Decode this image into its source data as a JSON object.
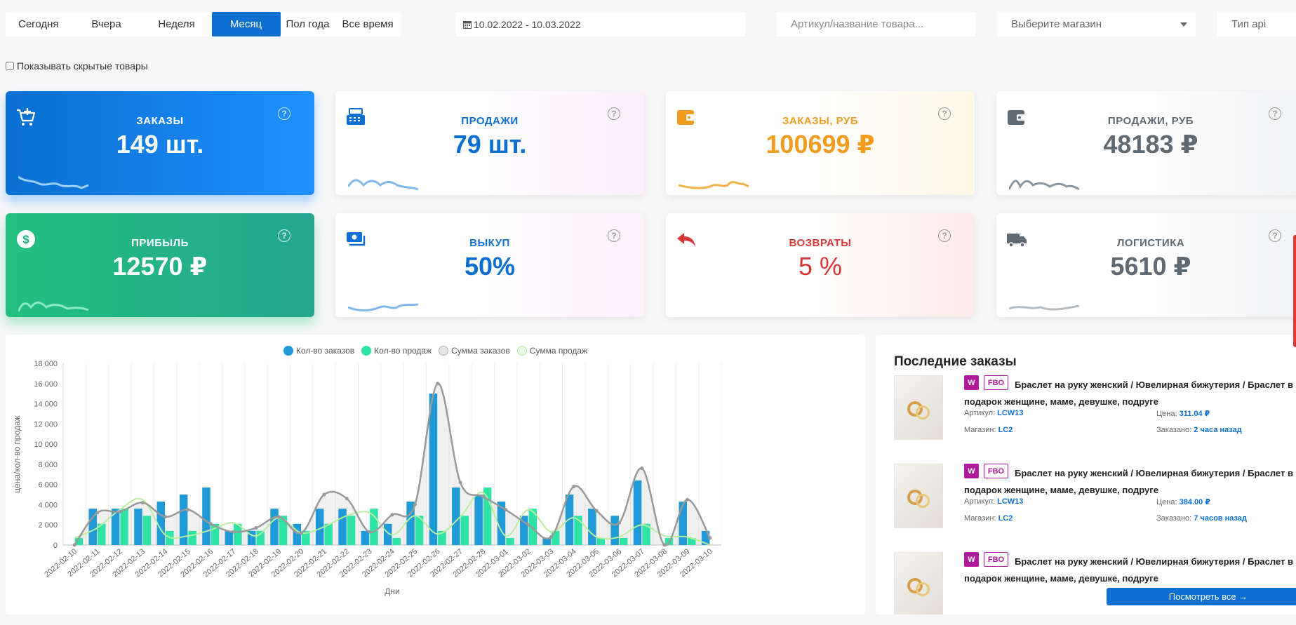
{
  "periods": [
    "Сегодня",
    "Вчера",
    "Неделя",
    "Месяц",
    "Пол года",
    "Все время"
  ],
  "active_period": "Месяц",
  "date_range": "10.02.2022 - 10.03.2022",
  "search_placeholder": "Артикул/название товара...",
  "shop_select": "Выберите магазин",
  "type_label": "Тип api",
  "show_hidden_label": "Показывать скрытые товары",
  "cards": {
    "orders": {
      "title": "ЗАКАЗЫ",
      "value": "149 шт."
    },
    "sales": {
      "title": "ПРОДАЖИ",
      "value": "79 шт."
    },
    "orders_rub": {
      "title": "ЗАКАЗЫ, РУБ",
      "value": "100699 ₽"
    },
    "sales_rub": {
      "title": "ПРОДАЖИ, РУБ",
      "value": "48183 ₽"
    },
    "profit": {
      "title": "ПРИБЫЛЬ",
      "value": "12570 ₽"
    },
    "buyout": {
      "title": "ВЫКУП",
      "value": "50%"
    },
    "returns": {
      "title": "ВОЗВРАТЫ",
      "value": "5 %"
    },
    "logistics": {
      "title": "ЛОГИСТИКА",
      "value": "5610 ₽"
    }
  },
  "help_symbol": "?",
  "colors": {
    "blue": "#0c6fd1",
    "orange": "#f29c1f",
    "grey": "#5f6a73",
    "red": "#d93636",
    "bar_orders": "#1f9ad6",
    "bar_sales": "#2fe3a6"
  },
  "chart_data": {
    "type": "bar",
    "ylabel": "цена/кол-во продаж",
    "xlabel": "Дни",
    "ylim": [
      0,
      18000
    ],
    "yticks": [
      "0",
      "2 000",
      "4 000",
      "6 000",
      "8 000",
      "10 000",
      "12 000",
      "14 000",
      "16 000",
      "18 000"
    ],
    "legend": [
      "Кол-во заказов",
      "Кол-во продаж",
      "Сумма заказов",
      "Сумма продаж"
    ],
    "categories": [
      "2022-02-10",
      "2022-02-11",
      "2022-02-12",
      "2022-02-13",
      "2022-02-14",
      "2022-02-15",
      "2022-02-16",
      "2022-02-17",
      "2022-02-18",
      "2022-02-19",
      "2022-02-20",
      "2022-02-21",
      "2022-02-22",
      "2022-02-23",
      "2022-02-24",
      "2022-02-25",
      "2022-02-26",
      "2022-02-27",
      "2022-02-28",
      "2022-03-01",
      "2022-03-02",
      "2022-03-03",
      "2022-03-04",
      "2022-03-05",
      "2022-03-06",
      "2022-03-07",
      "2022-03-08",
      "2022-03-09",
      "2022-03-10"
    ],
    "series": [
      {
        "name": "Кол-во заказов",
        "values": [
          0,
          3600,
          3600,
          3600,
          4300,
          5000,
          5700,
          1400,
          1400,
          3600,
          2100,
          3600,
          3600,
          1400,
          2100,
          4300,
          15000,
          5700,
          5000,
          4300,
          2900,
          700,
          5000,
          3600,
          2900,
          6400,
          0,
          4300,
          1400
        ]
      },
      {
        "name": "Кол-во продаж",
        "values": [
          700,
          2100,
          3600,
          2900,
          1400,
          1400,
          2100,
          2100,
          1400,
          2900,
          1400,
          2100,
          2900,
          3600,
          700,
          2900,
          1400,
          2900,
          5700,
          700,
          3600,
          1400,
          2900,
          700,
          700,
          2100,
          700,
          700,
          0
        ]
      },
      {
        "name": "Сумма заказов",
        "values": [
          0,
          3200,
          3300,
          4200,
          2800,
          3500,
          2100,
          1300,
          1700,
          2800,
          1200,
          5000,
          4600,
          1300,
          3000,
          4000,
          16000,
          6200,
          4800,
          3500,
          2000,
          800,
          5800,
          3400,
          2200,
          7600,
          0,
          4500,
          700
        ]
      },
      {
        "name": "Сумма продаж",
        "values": [
          700,
          1700,
          3500,
          4500,
          1000,
          900,
          1500,
          2200,
          900,
          2700,
          1200,
          1800,
          2900,
          3200,
          1000,
          2900,
          1100,
          2800,
          5200,
          900,
          3500,
          1300,
          2700,
          800,
          800,
          2000,
          900,
          800,
          0
        ]
      }
    ]
  },
  "orders": {
    "title": "Последние заказы",
    "badge_w": "W",
    "badge_fbo": "FBO",
    "sku_label": "Артикул:",
    "price_label": "Цена:",
    "shop_label": "Магазин:",
    "ordered_label": "Заказано:",
    "items": [
      {
        "name": "Браслет на руку женский / Ювелирная бижутерия / Браслет в подарок женщине, маме, девушке, подруге",
        "sku": "LCW13",
        "price": "311.04 ₽",
        "shop": "LC2",
        "ordered": "2 часа назад"
      },
      {
        "name": "Браслет на руку женский / Ювелирная бижутерия / Браслет в подарок женщине, маме, девушке, подруге",
        "sku": "LCW13",
        "price": "384.00 ₽",
        "shop": "LC2",
        "ordered": "7 часов назад"
      },
      {
        "name": "Браслет на руку женский / Ювелирная бижутерия / Браслет в подарок женщине, маме, девушке, подруге"
      }
    ],
    "view_all": "Посмотреть все →"
  }
}
